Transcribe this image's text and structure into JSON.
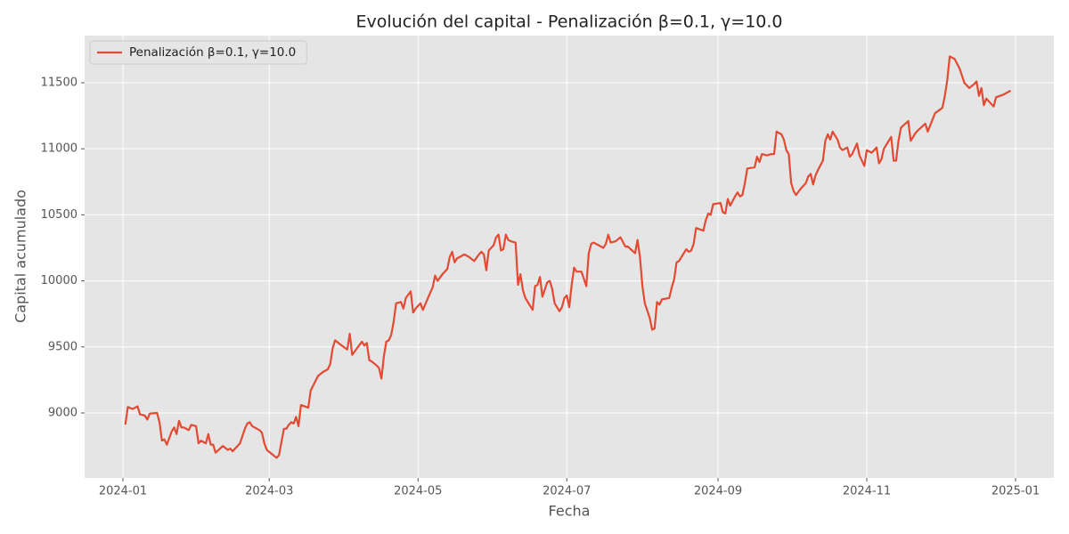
{
  "chart_data": {
    "type": "line",
    "title": "Evolución del capital - Penalización β=0.1, γ=10.0",
    "xlabel": "Fecha",
    "ylabel": "Capital acumulado",
    "xlim": [
      -15.7,
      381.7
    ],
    "ylim": [
      8508,
      11857
    ],
    "xticks": [
      {
        "value": 0,
        "label": "2024-01"
      },
      {
        "value": 60,
        "label": "2024-03"
      },
      {
        "value": 121,
        "label": "2024-05"
      },
      {
        "value": 182,
        "label": "2024-07"
      },
      {
        "value": 244,
        "label": "2024-09"
      },
      {
        "value": 305,
        "label": "2024-11"
      },
      {
        "value": 366,
        "label": "2025-01"
      }
    ],
    "yticks": [
      9000,
      9500,
      10000,
      10500,
      11000,
      11500
    ],
    "grid": true,
    "legend": "upper left",
    "x": [
      1,
      2,
      4,
      6,
      7,
      9,
      10,
      11,
      14,
      15,
      16,
      17,
      18,
      20,
      21,
      22,
      23,
      24,
      25,
      27,
      28,
      30,
      31,
      32,
      34,
      35,
      36,
      37,
      38,
      41,
      43,
      44,
      45,
      46,
      48,
      50,
      51,
      52,
      53,
      56,
      57,
      58,
      59,
      61,
      63,
      64,
      66,
      67,
      68,
      69,
      70,
      71,
      72,
      73,
      76,
      77,
      80,
      82,
      84,
      85,
      86,
      87,
      89,
      92,
      93,
      94,
      96,
      98,
      99,
      100,
      101,
      102,
      104,
      105,
      106,
      107,
      108,
      109,
      110,
      111,
      112,
      114,
      115,
      116,
      118,
      119,
      120,
      122,
      123,
      126,
      127,
      128,
      129,
      131,
      133,
      134,
      135,
      136,
      137,
      140,
      142,
      144,
      146,
      147,
      148,
      149,
      150,
      152,
      153,
      154,
      155,
      156,
      157,
      158,
      159,
      161,
      162,
      163,
      164,
      165,
      168,
      169,
      170,
      171,
      172,
      174,
      175,
      176,
      177,
      179,
      180,
      181,
      182,
      183,
      184,
      185,
      186,
      188,
      190,
      191,
      192,
      193,
      196,
      197,
      198,
      199,
      200,
      202,
      204,
      206,
      207,
      210,
      211,
      212,
      213,
      214,
      216,
      217,
      218,
      219,
      220,
      221,
      224,
      225,
      226,
      227,
      228,
      231,
      232,
      233,
      234,
      235,
      238,
      239,
      240,
      241,
      242,
      245,
      246,
      247,
      248,
      249,
      251,
      252,
      253,
      254,
      255,
      256,
      259,
      260,
      261,
      262,
      264,
      266,
      267,
      268,
      270,
      271,
      272,
      273,
      274,
      275,
      276,
      278,
      280,
      281,
      282,
      283,
      284,
      285,
      287,
      288,
      289,
      290,
      291,
      293,
      294,
      295,
      297,
      298,
      299,
      301,
      302,
      303,
      304,
      305,
      307,
      309,
      310,
      311,
      312,
      315,
      316,
      317,
      318,
      319,
      322,
      323,
      325,
      326,
      329,
      330,
      333,
      336,
      337,
      338,
      339,
      341,
      343,
      345,
      347,
      349,
      350,
      351,
      352,
      353,
      354,
      357,
      358,
      361,
      364
    ],
    "series": [
      {
        "name": "Penalización β=0.1, γ=10.0",
        "color": "#e24a33",
        "values": [
          8912,
          9045,
          9030,
          9050,
          8990,
          8980,
          8950,
          8995,
          9000,
          8930,
          8790,
          8800,
          8760,
          8860,
          8890,
          8840,
          8940,
          8890,
          8890,
          8870,
          8910,
          8900,
          8770,
          8790,
          8770,
          8840,
          8760,
          8760,
          8700,
          8750,
          8720,
          8730,
          8710,
          8730,
          8770,
          8880,
          8920,
          8930,
          8900,
          8870,
          8850,
          8770,
          8720,
          8690,
          8660,
          8680,
          8880,
          8880,
          8910,
          8930,
          8920,
          8970,
          8900,
          9060,
          9040,
          9170,
          9280,
          9310,
          9330,
          9370,
          9490,
          9550,
          9520,
          9480,
          9600,
          9440,
          9490,
          9540,
          9510,
          9530,
          9400,
          9390,
          9360,
          9340,
          9260,
          9430,
          9540,
          9550,
          9590,
          9690,
          9830,
          9840,
          9790,
          9870,
          9920,
          9760,
          9790,
          9830,
          9780,
          9910,
          9950,
          10040,
          10000,
          10050,
          10090,
          10180,
          10220,
          10140,
          10170,
          10200,
          10180,
          10150,
          10200,
          10220,
          10200,
          10080,
          10230,
          10270,
          10330,
          10350,
          10230,
          10240,
          10350,
          10310,
          10300,
          10290,
          9970,
          10050,
          9930,
          9870,
          9780,
          9960,
          9970,
          10030,
          9880,
          9990,
          10000,
          9940,
          9830,
          9770,
          9800,
          9870,
          9890,
          9800,
          9970,
          10100,
          10070,
          10070,
          9960,
          10210,
          10280,
          10290,
          10260,
          10250,
          10280,
          10350,
          10290,
          10300,
          10330,
          10260,
          10260,
          10210,
          10310,
          10180,
          9960,
          9830,
          9720,
          9630,
          9640,
          9840,
          9820,
          9860,
          9870,
          9950,
          10010,
          10140,
          10150,
          10240,
          10220,
          10230,
          10280,
          10400,
          10380,
          10460,
          10510,
          10500,
          10580,
          10590,
          10520,
          10510,
          10620,
          10570,
          10640,
          10670,
          10640,
          10650,
          10740,
          10850,
          10860,
          10940,
          10900,
          10960,
          10950,
          10960,
          10960,
          11130,
          11110,
          11070,
          10990,
          10960,
          10740,
          10680,
          10650,
          10700,
          10740,
          10790,
          10810,
          10730,
          10800,
          10840,
          10910,
          11060,
          11110,
          11070,
          11130,
          11070,
          11010,
          10990,
          11010,
          10940,
          10960,
          11040,
          10950,
          10910,
          10870,
          10990,
          10970,
          11010,
          10890,
          10920,
          11000,
          11090,
          10910,
          10910,
          11060,
          11160,
          11210,
          11060,
          11120,
          11140,
          11190,
          11130,
          11270,
          11310,
          11400,
          11520,
          11700,
          11680,
          11610,
          11500,
          11460,
          11490,
          11510,
          11400,
          11460,
          11330,
          11380,
          11320,
          11390,
          11410,
          11440
        ]
      }
    ]
  }
}
